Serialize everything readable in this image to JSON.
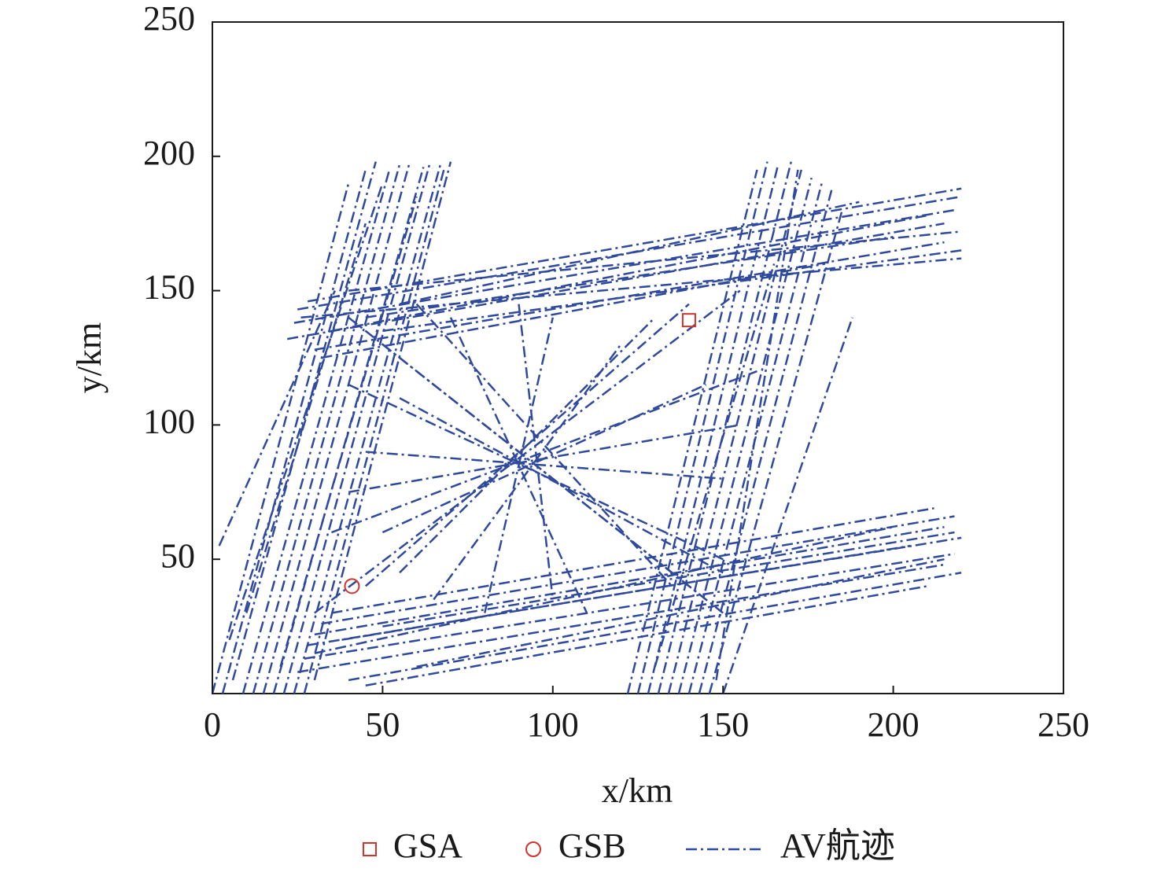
{
  "chart_data": {
    "type": "scatter",
    "xlabel": "x/km",
    "ylabel": "y/km",
    "xlim": [
      0,
      250
    ],
    "ylim": [
      0,
      250
    ],
    "xticks": [
      0,
      50,
      100,
      150,
      200,
      250
    ],
    "yticks": [
      50,
      100,
      150,
      200,
      250
    ],
    "legend": "bottom",
    "series": [
      {
        "name": "GSA",
        "color": "#d0342c",
        "marker": "square",
        "x": [
          140
        ],
        "y": [
          139
        ]
      },
      {
        "name": "GSB",
        "color": "#d0342c",
        "marker": "circle",
        "x": [
          41
        ],
        "y": [
          40
        ]
      },
      {
        "name": "AV航迹",
        "color": "#2f4a9c",
        "marker": "dashdot",
        "tracks": [
          {
            "x": [
              0,
              40
            ],
            "y": [
              0,
              190
            ]
          },
          {
            "x": [
              3,
              45
            ],
            "y": [
              0,
              195
            ]
          },
          {
            "x": [
              6,
              48
            ],
            "y": [
              5,
              198
            ]
          },
          {
            "x": [
              9,
              52
            ],
            "y": [
              0,
              195
            ]
          },
          {
            "x": [
              12,
              55
            ],
            "y": [
              0,
              197
            ]
          },
          {
            "x": [
              15,
              58
            ],
            "y": [
              0,
              198
            ]
          },
          {
            "x": [
              18,
              62
            ],
            "y": [
              0,
              196
            ]
          },
          {
            "x": [
              21,
              64
            ],
            "y": [
              0,
              198
            ]
          },
          {
            "x": [
              24,
              67
            ],
            "y": [
              0,
              197
            ]
          },
          {
            "x": [
              27,
              68
            ],
            "y": [
              0,
              195
            ]
          },
          {
            "x": [
              30,
              70
            ],
            "y": [
              5,
              198
            ]
          },
          {
            "x": [
              2,
              36
            ],
            "y": [
              55,
              150
            ]
          },
          {
            "x": [
              5,
              50
            ],
            "y": [
              20,
              190
            ]
          },
          {
            "x": [
              20,
              60
            ],
            "y": [
              10,
              185
            ]
          },
          {
            "x": [
              10,
              45
            ],
            "y": [
              30,
              175
            ]
          },
          {
            "x": [
              22,
              215
            ],
            "y": [
              132,
              175
            ]
          },
          {
            "x": [
              24,
              218
            ],
            "y": [
              138,
              180
            ]
          },
          {
            "x": [
              25,
              220
            ],
            "y": [
              143,
              185
            ]
          },
          {
            "x": [
              28,
              220
            ],
            "y": [
              146,
              188
            ]
          },
          {
            "x": [
              30,
              215
            ],
            "y": [
              128,
              168
            ]
          },
          {
            "x": [
              26,
              220
            ],
            "y": [
              140,
              162
            ]
          },
          {
            "x": [
              35,
              210
            ],
            "y": [
              135,
              178
            ]
          },
          {
            "x": [
              40,
              220
            ],
            "y": [
              150,
              172
            ]
          },
          {
            "x": [
              45,
              200
            ],
            "y": [
              140,
              170
            ]
          },
          {
            "x": [
              50,
              220
            ],
            "y": [
              135,
              165
            ]
          },
          {
            "x": [
              55,
              190
            ],
            "y": [
              145,
              183
            ]
          },
          {
            "x": [
              32,
              180
            ],
            "y": [
              125,
              160
            ]
          },
          {
            "x": [
              122,
              160
            ],
            "y": [
              0,
              195
            ]
          },
          {
            "x": [
              125,
              163
            ],
            "y": [
              0,
              198
            ]
          },
          {
            "x": [
              128,
              166
            ],
            "y": [
              0,
              196
            ]
          },
          {
            "x": [
              131,
              170
            ],
            "y": [
              0,
              198
            ]
          },
          {
            "x": [
              134,
              173
            ],
            "y": [
              0,
              195
            ]
          },
          {
            "x": [
              137,
              176
            ],
            "y": [
              0,
              192
            ]
          },
          {
            "x": [
              140,
              179
            ],
            "y": [
              0,
              190
            ]
          },
          {
            "x": [
              143,
              182
            ],
            "y": [
              0,
              188
            ]
          },
          {
            "x": [
              146,
              185
            ],
            "y": [
              0,
              180
            ]
          },
          {
            "x": [
              150,
              188
            ],
            "y": [
              0,
              140
            ]
          },
          {
            "x": [
              148,
              172
            ],
            "y": [
              5,
              195
            ]
          },
          {
            "x": [
              130,
              165
            ],
            "y": [
              10,
              160
            ]
          },
          {
            "x": [
              25,
              215
            ],
            "y": [
              8,
              48
            ]
          },
          {
            "x": [
              27,
              218
            ],
            "y": [
              13,
              52
            ]
          },
          {
            "x": [
              28,
              220
            ],
            "y": [
              18,
              58
            ]
          },
          {
            "x": [
              30,
              215
            ],
            "y": [
              22,
              62
            ]
          },
          {
            "x": [
              32,
              218
            ],
            "y": [
              26,
              66
            ]
          },
          {
            "x": [
              35,
              212
            ],
            "y": [
              30,
              69
            ]
          },
          {
            "x": [
              40,
              220
            ],
            "y": [
              5,
              45
            ]
          },
          {
            "x": [
              45,
              210
            ],
            "y": [
              3,
              40
            ]
          },
          {
            "x": [
              38,
              205
            ],
            "y": [
              20,
              55
            ]
          },
          {
            "x": [
              60,
              215
            ],
            "y": [
              10,
              50
            ]
          },
          {
            "x": [
              30,
              200
            ],
            "y": [
              15,
              62
            ]
          },
          {
            "x": [
              50,
              218
            ],
            "y": [
              25,
              60
            ]
          },
          {
            "x": [
              30,
              155
            ],
            "y": [
              30,
              150
            ]
          },
          {
            "x": [
              40,
              150
            ],
            "y": [
              140,
              30
            ]
          },
          {
            "x": [
              45,
              140
            ],
            "y": [
              40,
              145
            ]
          },
          {
            "x": [
              50,
              145
            ],
            "y": [
              130,
              35
            ]
          },
          {
            "x": [
              35,
              160
            ],
            "y": [
              60,
              120
            ]
          },
          {
            "x": [
              40,
              150
            ],
            "y": [
              115,
              50
            ]
          },
          {
            "x": [
              70,
              110
            ],
            "y": [
              140,
              30
            ]
          },
          {
            "x": [
              80,
              100
            ],
            "y": [
              30,
              140
            ]
          },
          {
            "x": [
              45,
              150
            ],
            "y": [
              90,
              80
            ]
          },
          {
            "x": [
              55,
              130
            ],
            "y": [
              45,
              140
            ]
          },
          {
            "x": [
              60,
              135
            ],
            "y": [
              145,
              40
            ]
          },
          {
            "x": [
              40,
              155
            ],
            "y": [
              75,
              100
            ]
          },
          {
            "x": [
              65,
              120
            ],
            "y": [
              35,
              130
            ]
          },
          {
            "x": [
              50,
              145
            ],
            "y": [
              60,
              115
            ]
          },
          {
            "x": [
              55,
              150
            ],
            "y": [
              110,
              45
            ]
          },
          {
            "x": [
              90,
              100
            ],
            "y": [
              145,
              35
            ]
          }
        ]
      }
    ]
  }
}
